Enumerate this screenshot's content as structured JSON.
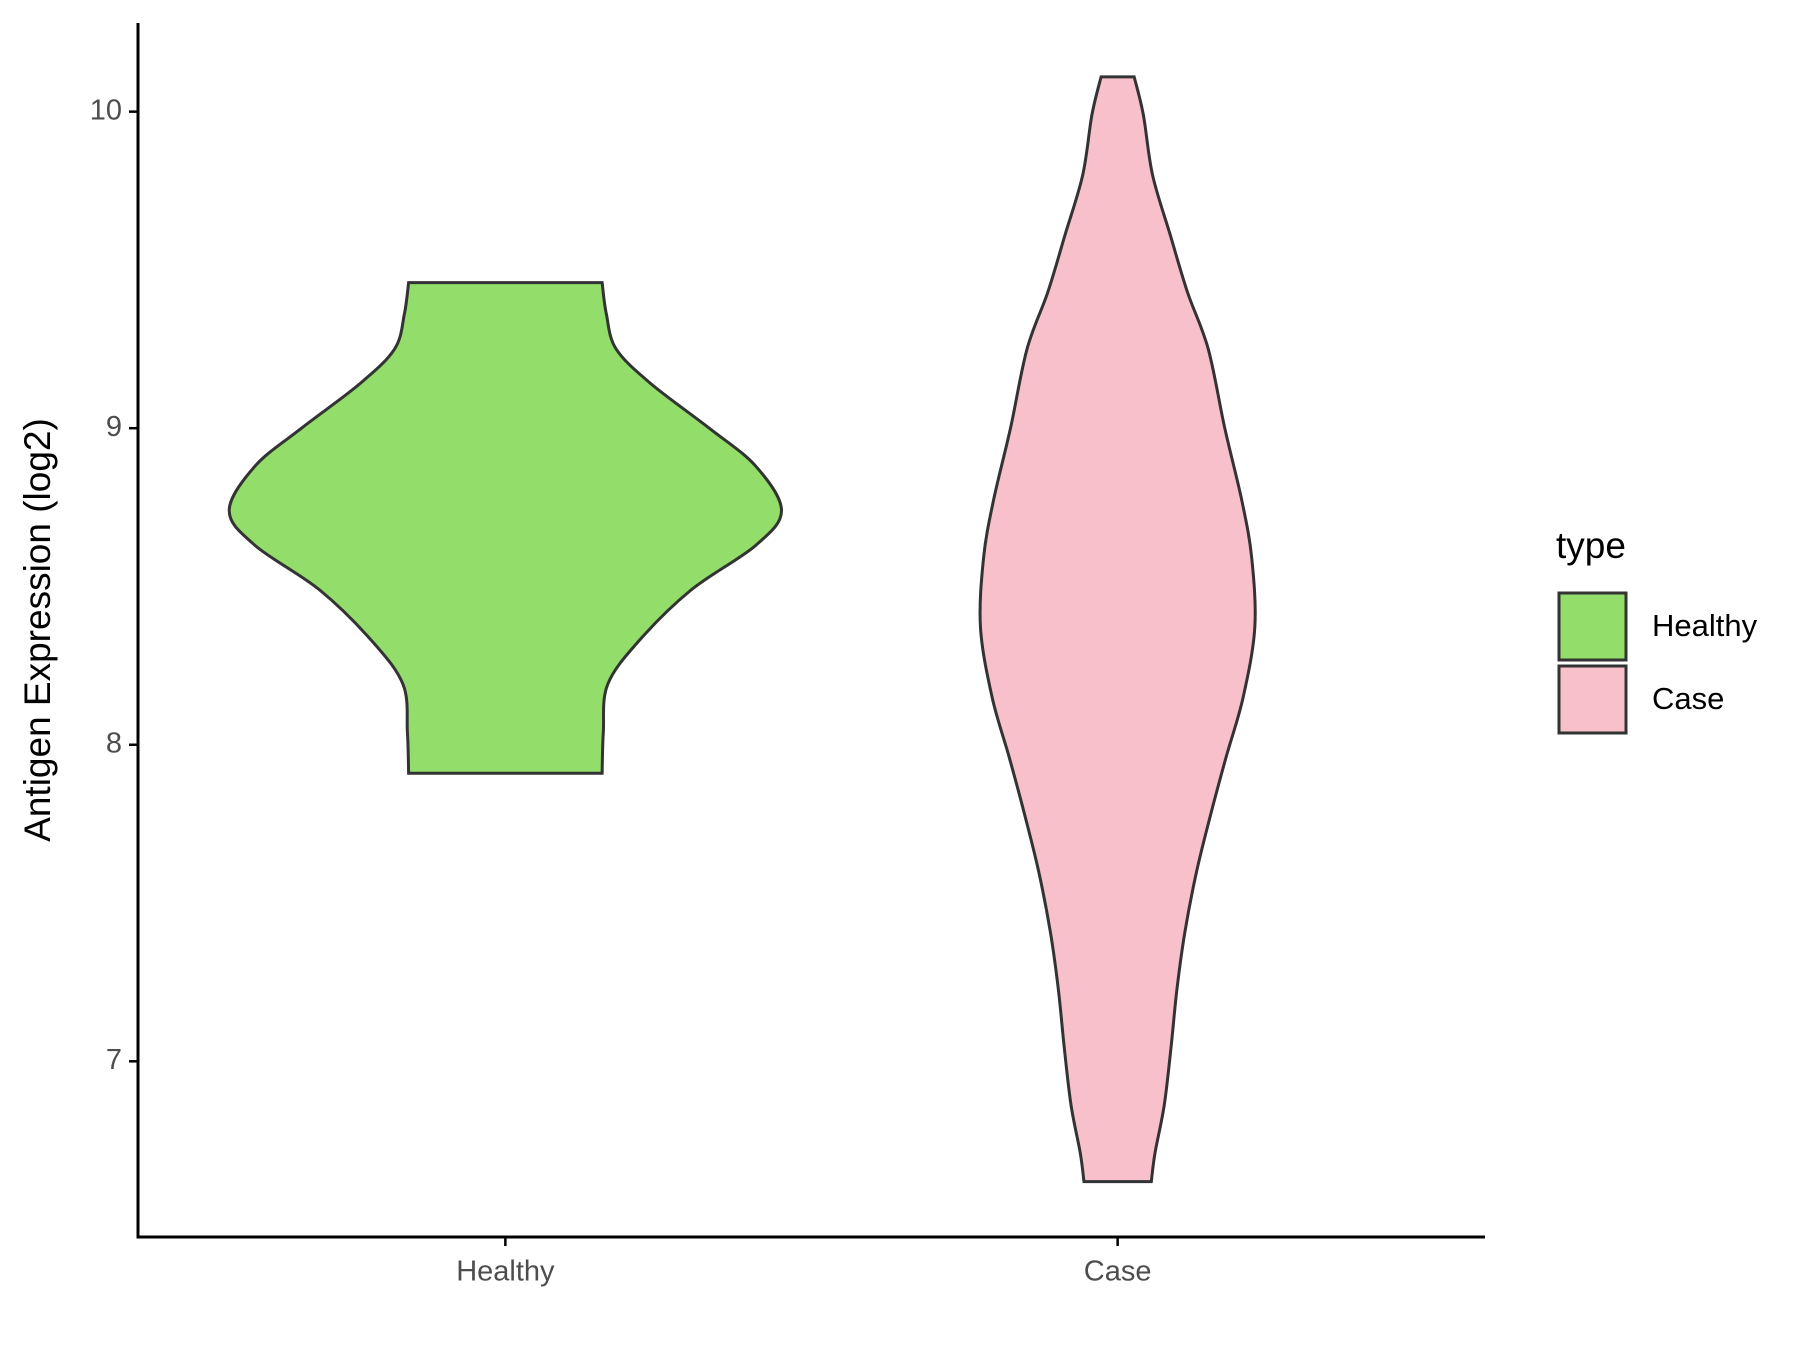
{
  "chart_data": {
    "type": "violin",
    "y_label": "Antigen Expression (log2)",
    "legend_title": "type",
    "legend_position": "right",
    "categories": [
      "Healthy",
      "Case"
    ],
    "series": [
      {
        "name": "Healthy",
        "color": "#93dd6b",
        "y": [
          9.46,
          9.36,
          9.25,
          9.14,
          9.0,
          8.88,
          8.74,
          8.63,
          8.49,
          8.33,
          8.19,
          8.04,
          7.91
        ],
        "half_width": [
          0.158,
          0.165,
          0.181,
          0.238,
          0.333,
          0.409,
          0.451,
          0.409,
          0.304,
          0.219,
          0.167,
          0.16,
          0.158
        ]
      },
      {
        "name": "Case",
        "color": "#f7c0cb",
        "y": [
          10.11,
          9.99,
          9.8,
          9.61,
          9.43,
          9.25,
          9.0,
          8.77,
          8.59,
          8.37,
          8.15,
          7.96,
          7.78,
          7.6,
          7.41,
          7.23,
          7.04,
          6.86,
          6.71,
          6.62
        ],
        "half_width": [
          0.027,
          0.042,
          0.057,
          0.086,
          0.114,
          0.148,
          0.175,
          0.203,
          0.219,
          0.224,
          0.205,
          0.177,
          0.152,
          0.129,
          0.11,
          0.097,
          0.087,
          0.076,
          0.061,
          0.055
        ]
      }
    ],
    "ylim": [
      6.445,
      10.28
    ],
    "yticks": [
      7,
      8,
      9,
      10
    ]
  }
}
